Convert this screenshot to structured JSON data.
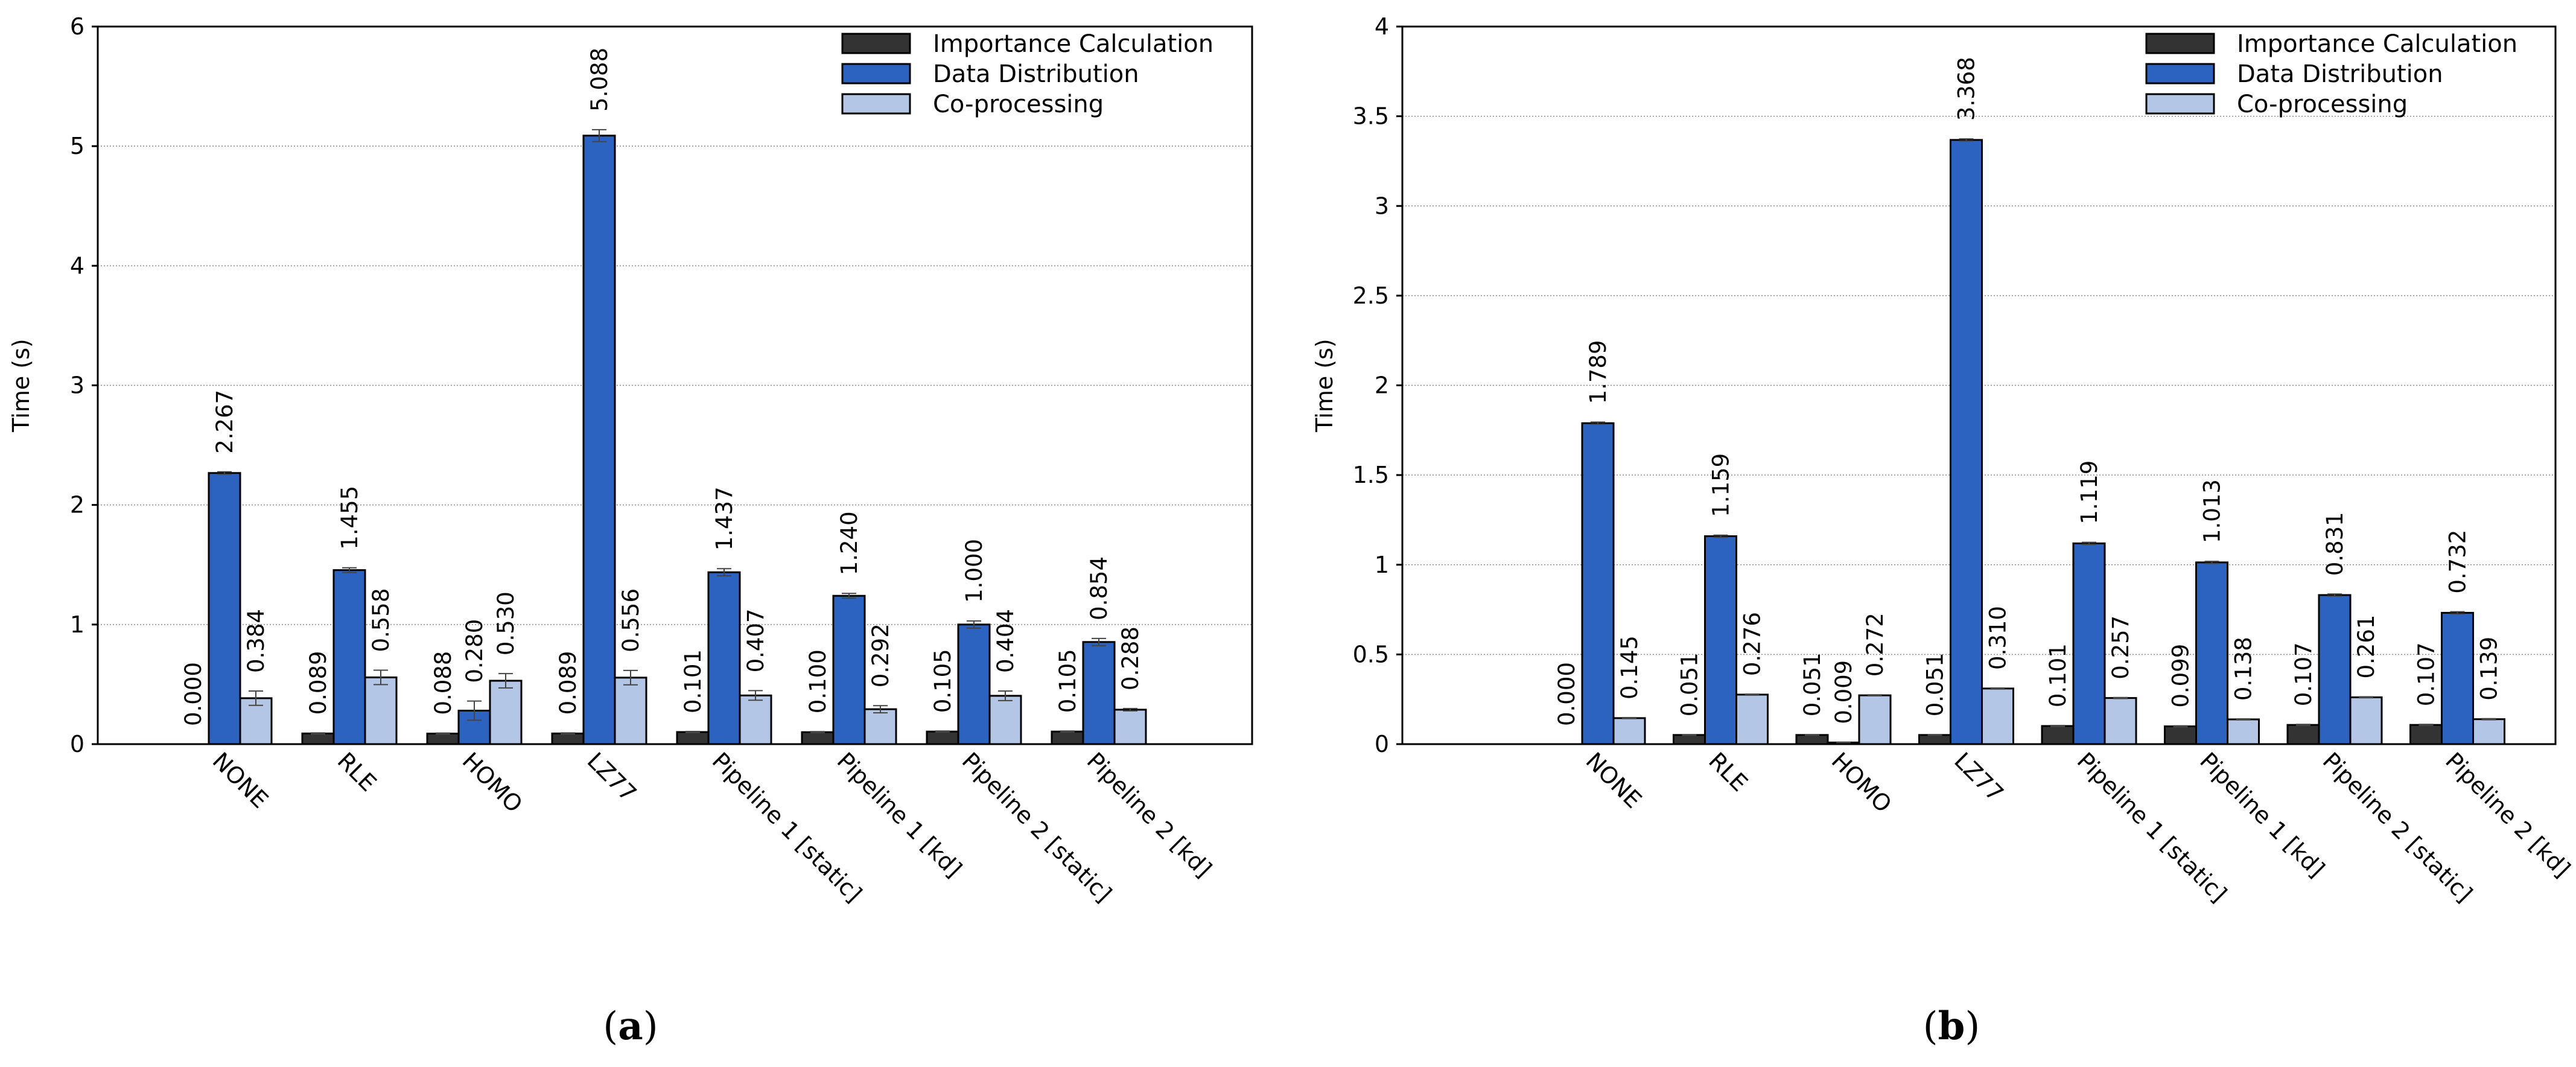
{
  "chart_data": [
    {
      "type": "bar",
      "caption_letter": "a",
      "ylabel": "Time (s)",
      "ylim": [
        0,
        6
      ],
      "yticks": [
        "0",
        "1",
        "2",
        "3",
        "4",
        "5",
        "6"
      ],
      "ytick_values": [
        0,
        1,
        2,
        3,
        4,
        5,
        6
      ],
      "categories": [
        "NONE",
        "RLE",
        "HOMO",
        "LZ77",
        "Pipeline 1 [static]",
        "Pipeline 1 [kd]",
        "Pipeline 2 [static]",
        "Pipeline 2 [kd]"
      ],
      "legend_position": "top-right",
      "grid": "horizontal",
      "series": [
        {
          "name": "Importance Calculation",
          "color": "#333333",
          "values": [
            0.0,
            0.089,
            0.088,
            0.089,
            0.101,
            0.1,
            0.105,
            0.105
          ],
          "labels": [
            "0.000",
            "0.089",
            "0.088",
            "0.089",
            "0.101",
            "0.100",
            "0.105",
            "0.105"
          ],
          "errors": [
            0,
            0.005,
            0.005,
            0.005,
            0.005,
            0.005,
            0.005,
            0.005
          ]
        },
        {
          "name": "Data Distribution",
          "color": "#2c63c0",
          "values": [
            2.267,
            1.455,
            0.28,
            5.088,
            1.437,
            1.24,
            1.0,
            0.854
          ],
          "labels": [
            "2.267",
            "1.455",
            "0.280",
            "5.088",
            "1.437",
            "1.240",
            "1.000",
            "0.854"
          ],
          "errors": [
            0.01,
            0.02,
            0.08,
            0.05,
            0.03,
            0.02,
            0.03,
            0.03
          ]
        },
        {
          "name": "Co-processing",
          "color": "#b4c6e6",
          "values": [
            0.384,
            0.558,
            0.53,
            0.556,
            0.407,
            0.292,
            0.404,
            0.288
          ],
          "labels": [
            "0.384",
            "0.558",
            "0.530",
            "0.556",
            "0.407",
            "0.292",
            "0.404",
            "0.288"
          ],
          "errors": [
            0.06,
            0.06,
            0.06,
            0.06,
            0.04,
            0.03,
            0.04,
            0.01
          ]
        }
      ]
    },
    {
      "type": "bar",
      "caption_letter": "b",
      "ylabel": "Time (s)",
      "ylim": [
        0,
        4
      ],
      "yticks": [
        "0",
        "0.5",
        "1",
        "1.5",
        "2",
        "2.5",
        "3",
        "3.5",
        "4"
      ],
      "ytick_values": [
        0,
        0.5,
        1,
        1.5,
        2,
        2.5,
        3,
        3.5,
        4
      ],
      "categories": [
        "NONE",
        "RLE",
        "HOMO",
        "LZ77",
        "Pipeline 1 [static]",
        "Pipeline 1 [kd]",
        "Pipeline 2 [static]",
        "Pipeline 2 [kd]"
      ],
      "legend_position": "top-right",
      "grid": "horizontal",
      "series": [
        {
          "name": "Importance Calculation",
          "color": "#333333",
          "values": [
            0.0,
            0.051,
            0.051,
            0.051,
            0.101,
            0.099,
            0.107,
            0.107
          ],
          "labels": [
            "0.000",
            "0.051",
            "0.051",
            "0.051",
            "0.101",
            "0.099",
            "0.107",
            "0.107"
          ],
          "errors": [
            0,
            0.002,
            0.002,
            0.002,
            0.003,
            0.003,
            0.003,
            0.003
          ]
        },
        {
          "name": "Data Distribution",
          "color": "#2c63c0",
          "values": [
            1.789,
            1.159,
            0.009,
            3.368,
            1.119,
            1.013,
            0.831,
            0.732
          ],
          "labels": [
            "1.789",
            "1.159",
            "0.009",
            "3.368",
            "1.119",
            "1.013",
            "0.831",
            "0.732"
          ],
          "errors": [
            0.006,
            0.006,
            0.002,
            0.006,
            0.006,
            0.006,
            0.006,
            0.006
          ]
        },
        {
          "name": "Co-processing",
          "color": "#b4c6e6",
          "values": [
            0.145,
            0.276,
            0.272,
            0.31,
            0.257,
            0.138,
            0.261,
            0.139
          ],
          "labels": [
            "0.145",
            "0.276",
            "0.272",
            "0.310",
            "0.257",
            "0.138",
            "0.261",
            "0.139"
          ],
          "errors": [
            0.003,
            0.003,
            0.003,
            0.003,
            0.003,
            0.003,
            0.003,
            0.003
          ]
        }
      ]
    }
  ]
}
